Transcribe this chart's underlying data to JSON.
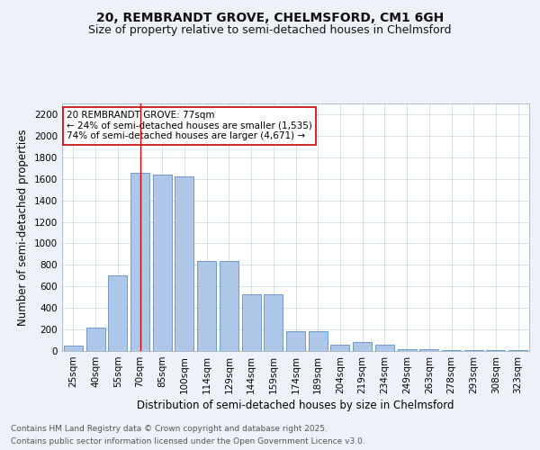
{
  "title1": "20, REMBRANDT GROVE, CHELMSFORD, CM1 6GH",
  "title2": "Size of property relative to semi-detached houses in Chelmsford",
  "xlabel": "Distribution of semi-detached houses by size in Chelmsford",
  "ylabel": "Number of semi-detached properties",
  "categories": [
    "25sqm",
    "40sqm",
    "55sqm",
    "70sqm",
    "85sqm",
    "100sqm",
    "114sqm",
    "129sqm",
    "144sqm",
    "159sqm",
    "174sqm",
    "189sqm",
    "204sqm",
    "219sqm",
    "234sqm",
    "249sqm",
    "263sqm",
    "278sqm",
    "293sqm",
    "308sqm",
    "323sqm"
  ],
  "values": [
    50,
    220,
    700,
    1660,
    1640,
    1620,
    840,
    840,
    530,
    530,
    185,
    185,
    55,
    80,
    55,
    20,
    20,
    5,
    5,
    5,
    5
  ],
  "bar_color": "#aec6e8",
  "bar_edge_color": "#6090c0",
  "annotation_text": "20 REMBRANDT GROVE: 77sqm\n← 24% of semi-detached houses are smaller (1,535)\n74% of semi-detached houses are larger (4,671) →",
  "annotation_box_facecolor": "#ffffff",
  "annotation_box_edgecolor": "#cc0000",
  "vline_index": 3,
  "vline_color": "#cc0000",
  "ylim": [
    0,
    2300
  ],
  "yticks": [
    0,
    200,
    400,
    600,
    800,
    1000,
    1200,
    1400,
    1600,
    1800,
    2000,
    2200
  ],
  "bg_color": "#eef2f8",
  "plot_bg_color": "#ffffff",
  "footer1": "Contains HM Land Registry data © Crown copyright and database right 2025.",
  "footer2": "Contains public sector information licensed under the Open Government Licence v3.0.",
  "title_fontsize": 10,
  "subtitle_fontsize": 9,
  "axis_label_fontsize": 8.5,
  "tick_fontsize": 7.5,
  "footer_fontsize": 6.5,
  "annotation_fontsize": 7.5
}
